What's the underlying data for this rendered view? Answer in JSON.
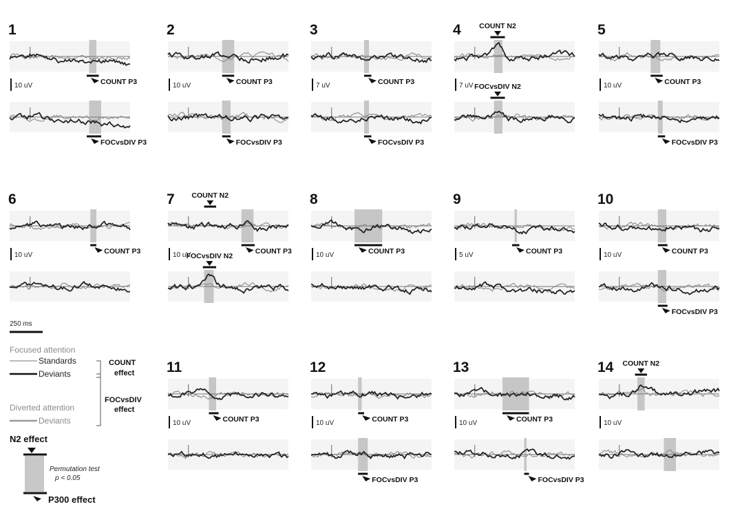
{
  "chart_data": {
    "type": "line",
    "panels": [
      {
        "n": "1",
        "scale": "10 uV",
        "top": {
          "seed": 11,
          "trend": 1.0,
          "shade": [
            0.66,
            0.72
          ],
          "labels": [
            {
              "t": "COUNT P3",
              "kind": "p3",
              "pos": [
                0.64,
                0.74
              ]
            }
          ]
        },
        "bottom": {
          "seed": 12,
          "trend": 1.2,
          "shade": [
            0.66,
            0.76
          ],
          "labels": [
            {
              "t": "FOCvsDIV P3",
              "kind": "p3",
              "pos": [
                0.64,
                0.76
              ]
            }
          ]
        }
      },
      {
        "n": "2",
        "scale": "10 uV",
        "top": {
          "seed": 21,
          "trend": 0.2,
          "shade": [
            0.45,
            0.55
          ],
          "labels": [
            {
              "t": "COUNT P3",
              "kind": "p3",
              "pos": [
                0.45,
                0.55
              ]
            }
          ]
        },
        "bottom": {
          "seed": 22,
          "trend": 0.2,
          "shade": [
            0.45,
            0.52
          ],
          "labels": [
            {
              "t": "FOCvsDIV P3",
              "kind": "p3",
              "pos": [
                0.45,
                0.52
              ]
            }
          ]
        }
      },
      {
        "n": "3",
        "scale": "7 uV",
        "top": {
          "seed": 31,
          "trend": 0.3,
          "shade": [
            0.44,
            0.48
          ],
          "labels": [
            {
              "t": "COUNT P3",
              "kind": "p3",
              "pos": [
                0.44,
                0.5
              ]
            }
          ]
        },
        "bottom": {
          "seed": 32,
          "trend": 0.3,
          "shade": [
            0.44,
            0.48
          ],
          "labels": [
            {
              "t": "FOCvsDIV P3",
              "kind": "p3",
              "pos": [
                0.44,
                0.5
              ]
            }
          ]
        }
      },
      {
        "n": "4",
        "scale": "7 uV",
        "top": {
          "seed": 41,
          "trend": 0.0,
          "shade": [
            0.33,
            0.4
          ],
          "labels": [
            {
              "t": "COUNT N2",
              "kind": "n2",
              "pos": [
                0.3,
                0.42
              ]
            }
          ]
        },
        "bottom": {
          "seed": 42,
          "trend": 0.1,
          "shade": [
            0.33,
            0.4
          ],
          "labels": [
            {
              "t": "FOCvsDIV N2",
              "kind": "n2",
              "pos": [
                0.3,
                0.42
              ]
            }
          ]
        }
      },
      {
        "n": "5",
        "scale": "10 uV",
        "top": {
          "seed": 51,
          "trend": 0.2,
          "shade": [
            0.43,
            0.51
          ],
          "labels": [
            {
              "t": "COUNT P3",
              "kind": "p3",
              "pos": [
                0.43,
                0.53
              ]
            }
          ]
        },
        "bottom": {
          "seed": 52,
          "trend": 0.3,
          "shade": [
            0.49,
            0.53
          ],
          "labels": [
            {
              "t": "FOCvsDIV P3",
              "kind": "p3",
              "pos": [
                0.49,
                0.55
              ]
            }
          ]
        }
      },
      {
        "n": "6",
        "scale": "10 uV",
        "top": {
          "seed": 61,
          "trend": 0.1,
          "shade": [
            0.67,
            0.72
          ],
          "labels": [
            {
              "t": "COUNT P3",
              "kind": "p3",
              "pos": [
                0.67,
                0.72
              ]
            }
          ]
        },
        "bottom": {
          "seed": 62,
          "trend": 0.1,
          "shade": null,
          "labels": []
        }
      },
      {
        "n": "7",
        "scale": "10 uV",
        "top": {
          "seed": 71,
          "trend": 0.3,
          "shade": [
            0.61,
            0.71
          ],
          "labels": [
            {
              "t": "COUNT N2",
              "kind": "n2",
              "pos": [
                0.3,
                0.4
              ]
            },
            {
              "t": "COUNT P3",
              "kind": "p3",
              "pos": [
                0.61,
                0.72
              ]
            }
          ]
        },
        "bottom": {
          "seed": 72,
          "trend": 0.3,
          "shade": [
            0.3,
            0.38
          ],
          "labels": [
            {
              "t": "FOCvsDIV N2",
              "kind": "n2",
              "pos": [
                0.29,
                0.4
              ]
            }
          ]
        }
      },
      {
        "n": "8",
        "scale": "10 uV",
        "top": {
          "seed": 81,
          "trend": 0.6,
          "shade": [
            0.36,
            0.59
          ],
          "labels": [
            {
              "t": "COUNT P3",
              "kind": "p3",
              "pos": [
                0.36,
                0.59
              ]
            }
          ]
        },
        "bottom": {
          "seed": 82,
          "trend": 0.5,
          "shade": null,
          "labels": []
        }
      },
      {
        "n": "9",
        "scale": "5 uV",
        "top": {
          "seed": 91,
          "trend": 0.6,
          "shade": [
            0.5,
            0.52
          ],
          "labels": [
            {
              "t": "COUNT P3",
              "kind": "p3",
              "pos": [
                0.48,
                0.54
              ]
            }
          ]
        },
        "bottom": {
          "seed": 92,
          "trend": 0.9,
          "shade": null,
          "labels": []
        }
      },
      {
        "n": "10",
        "scale": "10 uV",
        "top": {
          "seed": 101,
          "trend": 0.4,
          "shade": [
            0.49,
            0.56
          ],
          "labels": [
            {
              "t": "COUNT P3",
              "kind": "p3",
              "pos": [
                0.49,
                0.57
              ]
            }
          ]
        },
        "bottom": {
          "seed": 102,
          "trend": 0.4,
          "shade": [
            0.49,
            0.56
          ],
          "labels": [
            {
              "t": "FOCvsDIV P3",
              "kind": "p3",
              "pos": [
                0.49,
                0.57
              ]
            }
          ]
        }
      },
      {
        "n": "11",
        "scale": "10 uV",
        "top": {
          "seed": 111,
          "trend": 0.2,
          "shade": [
            0.34,
            0.4
          ],
          "labels": [
            {
              "t": "COUNT P3",
              "kind": "p3",
              "pos": [
                0.34,
                0.42
              ]
            }
          ]
        },
        "bottom": {
          "seed": 112,
          "trend": 0.2,
          "shade": null,
          "labels": []
        }
      },
      {
        "n": "12",
        "scale": "10 uV",
        "top": {
          "seed": 121,
          "trend": 0.2,
          "shade": [
            0.39,
            0.42
          ],
          "labels": [
            {
              "t": "COUNT P3",
              "kind": "p3",
              "pos": [
                0.39,
                0.44
              ]
            }
          ]
        },
        "bottom": {
          "seed": 122,
          "trend": 0.3,
          "shade": [
            0.39,
            0.47
          ],
          "labels": [
            {
              "t": "FOCvsDIV P3",
              "kind": "p3",
              "pos": [
                0.39,
                0.47
              ]
            }
          ]
        }
      },
      {
        "n": "13",
        "scale": "10 uV",
        "top": {
          "seed": 131,
          "trend": 0.2,
          "shade": [
            0.4,
            0.62
          ],
          "labels": [
            {
              "t": "COUNT P3",
              "kind": "p3",
              "pos": [
                0.4,
                0.62
              ]
            }
          ]
        },
        "bottom": {
          "seed": 132,
          "trend": 0.2,
          "shade": [
            0.58,
            0.6
          ],
          "labels": [
            {
              "t": "FOCvsDIV P3",
              "kind": "p3",
              "pos": [
                0.58,
                0.62
              ]
            }
          ]
        }
      },
      {
        "n": "14",
        "scale": "10 uV",
        "top": {
          "seed": 141,
          "trend": -0.2,
          "shade": [
            0.32,
            0.38
          ],
          "labels": [
            {
              "t": "COUNT N2",
              "kind": "n2",
              "pos": [
                0.3,
                0.4
              ]
            }
          ]
        },
        "bottom": {
          "seed": 142,
          "trend": -0.2,
          "shade": [
            0.54,
            0.64
          ],
          "labels": []
        }
      }
    ],
    "time_scale_label": "250 ms",
    "legend": {
      "focused_title": "Focused attention",
      "standards": "Standards",
      "deviants": "Deviants",
      "count_effect": [
        "COUNT",
        "effect"
      ],
      "focvsdiv_effect": [
        "FOCvsDIV",
        "effect"
      ],
      "diverted_title": "Diverted attention",
      "diverted_deviants": "Deviants",
      "n2_effect": "N2 effect",
      "perm_test": [
        "Permutation test",
        "p < 0.05"
      ],
      "p300_effect": "P300 effect"
    }
  }
}
